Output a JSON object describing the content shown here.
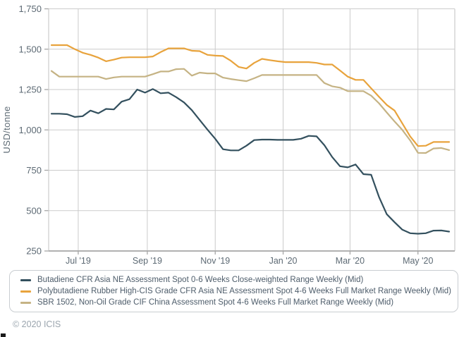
{
  "y_axis": {
    "title": "USD/tonne",
    "tick_labels": [
      "250",
      "500",
      "750",
      "1,000",
      "1,250",
      "1,500",
      "1,750"
    ]
  },
  "footer": {
    "copyright": "© 2020 ICIS"
  },
  "colors": {
    "gridline": "#cbcbcb",
    "axis_line": "#a6a6a6",
    "tick_text": "#5d6a74",
    "legend_text": "#4e5d6b"
  },
  "chart_data": {
    "type": "line",
    "title": "",
    "xlabel": "",
    "ylabel": "USD/tonne",
    "ylim": [
      250,
      1750
    ],
    "yticks": [
      250,
      500,
      750,
      1000,
      1250,
      1500,
      1750
    ],
    "grid": true,
    "legend_position": "bottom",
    "x_ticks": [
      {
        "label": "Jul '19",
        "week": 3.43
      },
      {
        "label": "Sep '19",
        "week": 12.29
      },
      {
        "label": "Nov '19",
        "week": 21.0
      },
      {
        "label": "Jan '20",
        "week": 29.71
      },
      {
        "label": "Mar '20",
        "week": 38.29
      },
      {
        "label": "May '20",
        "week": 47.0
      }
    ],
    "dates": [
      "2019-06-07",
      "2019-06-14",
      "2019-06-21",
      "2019-06-28",
      "2019-07-05",
      "2019-07-12",
      "2019-07-19",
      "2019-07-26",
      "2019-08-02",
      "2019-08-09",
      "2019-08-16",
      "2019-08-23",
      "2019-08-30",
      "2019-09-06",
      "2019-09-13",
      "2019-09-20",
      "2019-09-27",
      "2019-10-04",
      "2019-10-11",
      "2019-10-18",
      "2019-10-25",
      "2019-11-01",
      "2019-11-08",
      "2019-11-15",
      "2019-11-22",
      "2019-11-29",
      "2019-12-06",
      "2019-12-13",
      "2019-12-20",
      "2019-12-27",
      "2020-01-03",
      "2020-01-10",
      "2020-01-17",
      "2020-01-24",
      "2020-01-31",
      "2020-02-07",
      "2020-02-14",
      "2020-02-21",
      "2020-02-28",
      "2020-03-06",
      "2020-03-13",
      "2020-03-20",
      "2020-03-27",
      "2020-04-03",
      "2020-04-10",
      "2020-04-17",
      "2020-04-24",
      "2020-05-01",
      "2020-05-08",
      "2020-05-15",
      "2020-05-22",
      "2020-05-29"
    ],
    "series": [
      {
        "name": "Butadiene CFR Asia NE Assessment Spot 0-6 Weeks Close-weighted Range Weekly (Mid)",
        "color": "#33505e",
        "values": [
          1100,
          1100,
          1097,
          1080,
          1085,
          1120,
          1103,
          1130,
          1127,
          1175,
          1190,
          1250,
          1231,
          1253,
          1227,
          1231,
          1203,
          1170,
          1122,
          1062,
          1002,
          945,
          880,
          873,
          873,
          902,
          937,
          940,
          940,
          938,
          938,
          938,
          945,
          963,
          960,
          905,
          832,
          775,
          768,
          786,
          726,
          722,
          585,
          478,
          428,
          382,
          360,
          357,
          360,
          376,
          377,
          370
        ]
      },
      {
        "name": "Polybutadiene Rubber High-CIS Grade CFR Asia NE Assessment Spot 4-6 Weeks Full Market Range Weekly (Mid)",
        "color": "#e8a33c",
        "values": [
          1525,
          1525,
          1525,
          1500,
          1478,
          1465,
          1448,
          1425,
          1435,
          1448,
          1450,
          1450,
          1450,
          1455,
          1482,
          1505,
          1505,
          1505,
          1490,
          1488,
          1465,
          1460,
          1458,
          1428,
          1390,
          1380,
          1415,
          1440,
          1432,
          1425,
          1420,
          1420,
          1420,
          1420,
          1415,
          1405,
          1405,
          1368,
          1330,
          1310,
          1310,
          1258,
          1205,
          1155,
          1120,
          1040,
          960,
          900,
          902,
          925,
          925,
          925
        ]
      },
      {
        "name": "SBR 1502, Non-Oil Grade CIF China Assessment Spot 4-6 Weeks Full Market Range Weekly (Mid)",
        "color": "#c5b384",
        "values": [
          1365,
          1330,
          1330,
          1330,
          1330,
          1330,
          1330,
          1315,
          1325,
          1330,
          1330,
          1330,
          1330,
          1345,
          1362,
          1362,
          1376,
          1378,
          1336,
          1355,
          1350,
          1350,
          1324,
          1315,
          1308,
          1302,
          1320,
          1340,
          1340,
          1340,
          1340,
          1340,
          1340,
          1340,
          1340,
          1290,
          1270,
          1262,
          1240,
          1240,
          1240,
          1212,
          1165,
          1108,
          1052,
          1000,
          935,
          858,
          857,
          885,
          888,
          875
        ]
      }
    ]
  }
}
